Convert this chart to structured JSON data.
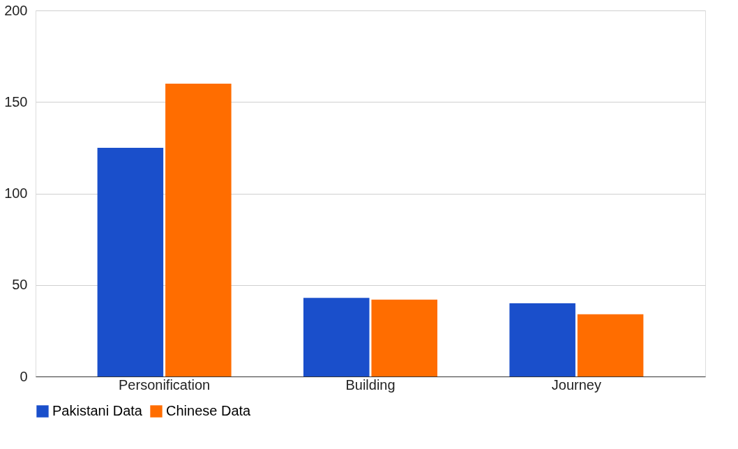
{
  "chart_data": {
    "type": "bar",
    "categories": [
      "Personification",
      "Building",
      "Journey"
    ],
    "series": [
      {
        "name": "Pakistani Data",
        "color": "#1a4fcb",
        "values": [
          125,
          43,
          40
        ]
      },
      {
        "name": "Chinese Data",
        "color": "#ff6d00",
        "values": [
          160,
          42,
          34
        ]
      }
    ],
    "ylim": [
      0,
      200
    ],
    "yticks": [
      0,
      50,
      100,
      150,
      200
    ],
    "grid": "y",
    "legend": "bottom"
  }
}
